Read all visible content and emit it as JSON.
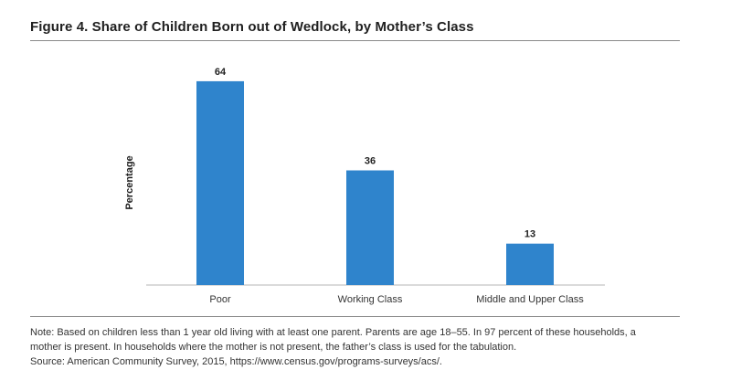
{
  "figure": {
    "title": "Figure 4. Share of Children Born out of Wedlock, by Mother’s Class"
  },
  "chart_data": {
    "type": "bar",
    "title": "Figure 4. Share of Children Born out of Wedlock, by Mother’s Class",
    "xlabel": "",
    "ylabel": "Percentage",
    "categories": [
      "Poor",
      "Working Class",
      "Middle and Upper Class"
    ],
    "values": [
      64,
      36,
      13
    ],
    "data_labels": [
      "64",
      "36",
      "13"
    ],
    "ylim": [
      0,
      70
    ],
    "grid": false,
    "bar_color": "#2f84cc"
  },
  "notes": {
    "line1": "Note: Based on children less than 1 year old living with at least one parent. Parents are age 18–55. In 97 percent of these households, a",
    "line2": "mother is present. In households where the mother is not present, the father’s class is used for the tabulation.",
    "line3": "Source: American Community Survey, 2015, https://www.census.gov/programs-surveys/acs/."
  }
}
